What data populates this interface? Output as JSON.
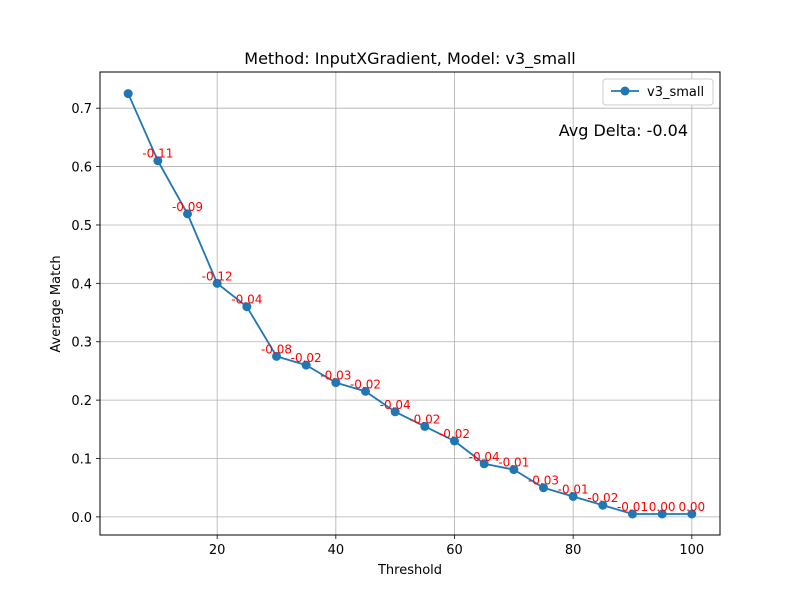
{
  "chart_data": {
    "type": "line",
    "title": "Method: InputXGradient, Model: v3_small",
    "xlabel": "Threshold",
    "ylabel": "Average Match",
    "xlim": [
      0.25,
      104.75
    ],
    "ylim": [
      -0.031,
      0.762
    ],
    "xticks": [
      20,
      40,
      60,
      80,
      100
    ],
    "yticks": [
      0.0,
      0.1,
      0.2,
      0.3,
      0.4,
      0.5,
      0.6,
      0.7
    ],
    "ytick_labels": [
      "0.0",
      "0.1",
      "0.2",
      "0.3",
      "0.4",
      "0.5",
      "0.6",
      "0.7"
    ],
    "grid": true,
    "legend_position": "top-right",
    "series": [
      {
        "name": "v3_small",
        "color": "#1f77b4",
        "marker": "circle",
        "x": [
          5,
          10,
          15,
          20,
          25,
          30,
          35,
          40,
          45,
          50,
          55,
          60,
          65,
          70,
          75,
          80,
          85,
          90,
          95,
          100
        ],
        "y": [
          0.725,
          0.61,
          0.519,
          0.4,
          0.36,
          0.275,
          0.26,
          0.23,
          0.215,
          0.18,
          0.155,
          0.13,
          0.091,
          0.081,
          0.05,
          0.035,
          0.02,
          0.005,
          0.005,
          0.005
        ]
      }
    ],
    "delta_annotations": [
      {
        "x": 10,
        "y": 0.61,
        "text": "-0.11"
      },
      {
        "x": 15,
        "y": 0.519,
        "text": "-0.09"
      },
      {
        "x": 20,
        "y": 0.4,
        "text": "-0.12"
      },
      {
        "x": 25,
        "y": 0.36,
        "text": "-0.04"
      },
      {
        "x": 30,
        "y": 0.275,
        "text": "-0.08"
      },
      {
        "x": 35,
        "y": 0.26,
        "text": "-0.02"
      },
      {
        "x": 40,
        "y": 0.23,
        "text": "-0.03"
      },
      {
        "x": 45,
        "y": 0.215,
        "text": "-0.02"
      },
      {
        "x": 50,
        "y": 0.18,
        "text": "-0.04"
      },
      {
        "x": 55,
        "y": 0.155,
        "text": "-0.02"
      },
      {
        "x": 60,
        "y": 0.13,
        "text": "-0.02"
      },
      {
        "x": 65,
        "y": 0.091,
        "text": "-0.04"
      },
      {
        "x": 70,
        "y": 0.081,
        "text": "-0.01"
      },
      {
        "x": 75,
        "y": 0.05,
        "text": "-0.03"
      },
      {
        "x": 80,
        "y": 0.035,
        "text": "-0.01"
      },
      {
        "x": 85,
        "y": 0.02,
        "text": "-0.02"
      },
      {
        "x": 90,
        "y": 0.005,
        "text": "-0.01"
      },
      {
        "x": 95,
        "y": 0.005,
        "text": "0.00"
      },
      {
        "x": 100,
        "y": 0.005,
        "text": "0.00"
      }
    ],
    "annotation_color": "#ff0000",
    "summary_text": "Avg Delta: -0.04"
  }
}
